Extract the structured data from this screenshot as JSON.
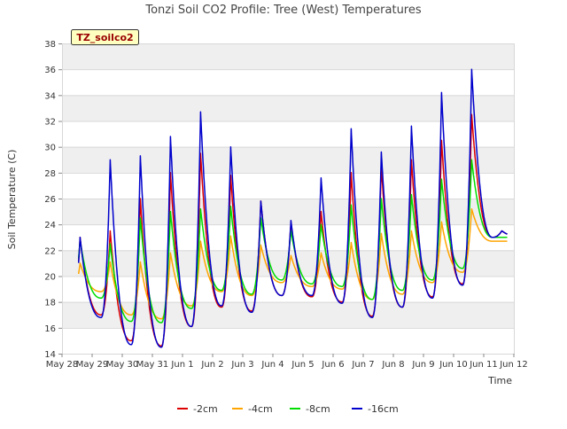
{
  "chart_data": {
    "type": "line",
    "title": "Tonzi Soil CO2 Profile: Tree (West) Temperatures",
    "xlabel": "Time",
    "ylabel": "Soil Temperature (C)",
    "annotation": "TZ_soilco2",
    "ylim": [
      14,
      38
    ],
    "yticks": [
      14,
      16,
      18,
      20,
      22,
      24,
      26,
      28,
      30,
      32,
      34,
      36,
      38
    ],
    "xlim": [
      0,
      15
    ],
    "xtick_labels": [
      "May 28",
      "May 29",
      "May 30",
      "May 31",
      "Jun 1",
      "Jun 2",
      "Jun 3",
      "Jun 4",
      "Jun 5",
      "Jun 6",
      "Jun 7",
      "Jun 8",
      "Jun 9",
      "Jun 10",
      "Jun 11",
      "Jun 12"
    ],
    "legend_position": "bottom",
    "grid": true,
    "series": [
      {
        "name": "-2cm",
        "color": "#dd0000",
        "daily_min": [
          17.2,
          17.0,
          15.0,
          14.6,
          16.1,
          17.6,
          17.3,
          18.5,
          18.4,
          18.0,
          16.9,
          17.6,
          18.4,
          19.4,
          23.0
        ],
        "daily_max": [
          23.0,
          23.5,
          26.0,
          28.0,
          29.5,
          27.8,
          25.8,
          24.2,
          25.0,
          28.0,
          28.5,
          29.0,
          30.5,
          32.5,
          23.5
        ]
      },
      {
        "name": "-4cm",
        "color": "#ffa500",
        "daily_min": [
          18.5,
          18.8,
          17.0,
          16.7,
          17.7,
          18.8,
          18.5,
          19.5,
          19.2,
          19.0,
          18.2,
          18.6,
          19.5,
          20.3,
          22.7
        ],
        "daily_max": [
          21.0,
          21.1,
          21.1,
          21.8,
          22.7,
          23.1,
          22.4,
          21.6,
          21.8,
          22.6,
          23.3,
          23.5,
          24.2,
          25.2,
          22.7
        ]
      },
      {
        "name": "-8cm",
        "color": "#00dd00",
        "daily_min": [
          18.5,
          18.3,
          16.5,
          16.4,
          17.5,
          18.9,
          18.6,
          19.7,
          19.4,
          19.2,
          18.2,
          18.9,
          19.7,
          20.6,
          23.0
        ],
        "daily_max": [
          22.8,
          22.5,
          24.5,
          25.0,
          25.2,
          25.4,
          24.5,
          23.5,
          24.0,
          25.5,
          26.0,
          26.3,
          27.5,
          29.0,
          23.0
        ]
      },
      {
        "name": "-16cm",
        "color": "#0000cc",
        "daily_min": [
          17.0,
          16.8,
          14.7,
          14.5,
          16.1,
          17.7,
          17.2,
          18.5,
          18.5,
          17.9,
          16.8,
          17.6,
          18.3,
          19.3,
          23.0
        ],
        "daily_max": [
          23.0,
          29.0,
          29.3,
          30.8,
          32.7,
          30.0,
          25.8,
          24.3,
          27.6,
          31.4,
          29.6,
          31.6,
          34.2,
          36.0,
          23.5
        ]
      }
    ]
  }
}
